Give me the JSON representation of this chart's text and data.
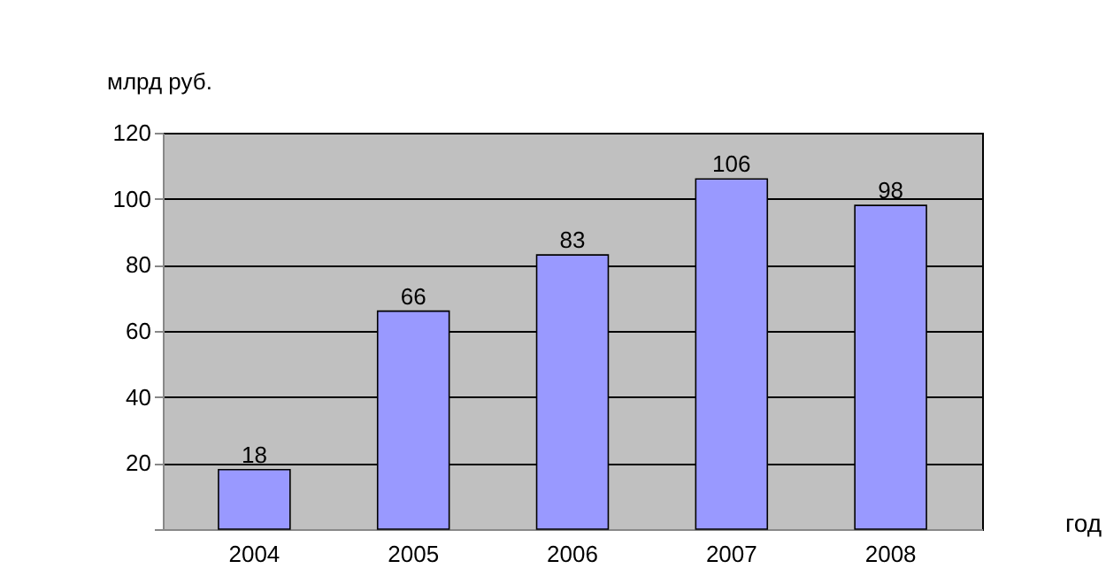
{
  "chart_data": {
    "type": "bar",
    "categories": [
      "2004",
      "2005",
      "2006",
      "2007",
      "2008"
    ],
    "values": [
      18,
      66,
      83,
      106,
      98
    ],
    "color": "#9999ff",
    "data_labels": true,
    "ylabel": "млрд руб.",
    "xlabel": "год",
    "ylim": [
      0,
      120
    ],
    "yticks": [
      {
        "value": 0,
        "label": null
      },
      20,
      40,
      60,
      80,
      100,
      120
    ],
    "grid": "y"
  }
}
